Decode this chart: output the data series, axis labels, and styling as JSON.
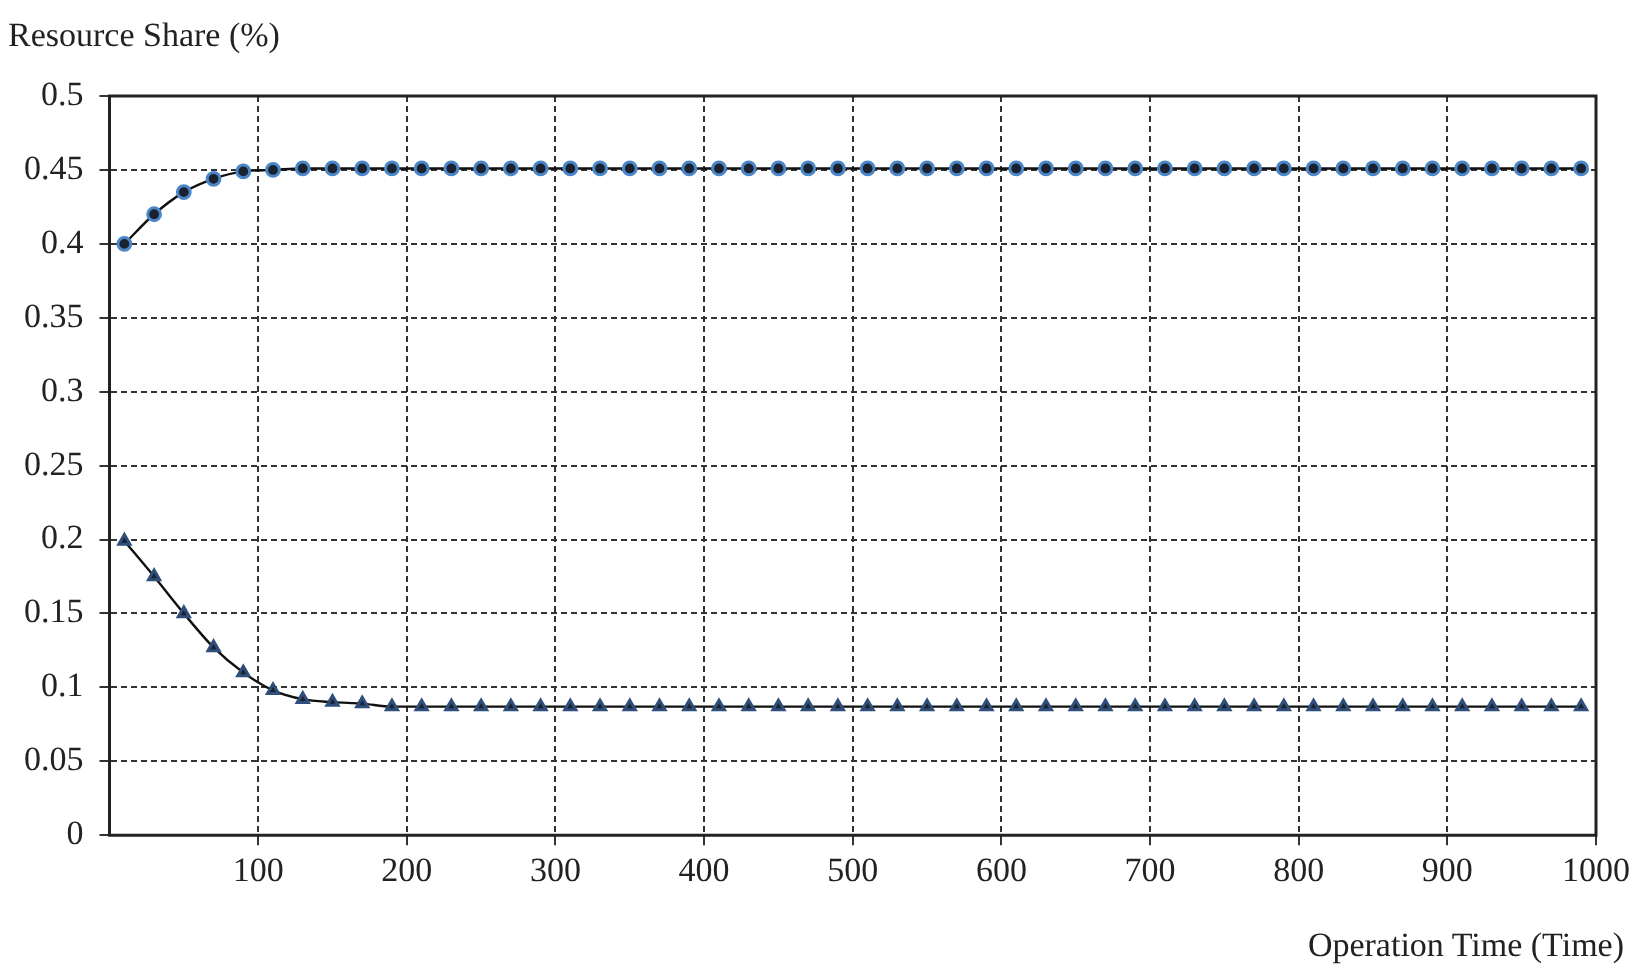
{
  "chart_data": {
    "type": "line",
    "xlabel": "Operation Time (Time)",
    "ylabel": "Resource Share (%)",
    "x": [
      10,
      30,
      50,
      70,
      90,
      110,
      130,
      150,
      170,
      190,
      210,
      230,
      250,
      270,
      290,
      310,
      330,
      350,
      370,
      390,
      410,
      430,
      450,
      470,
      490,
      510,
      530,
      550,
      570,
      590,
      610,
      630,
      650,
      670,
      690,
      710,
      730,
      750,
      770,
      790,
      810,
      830,
      850,
      870,
      890,
      910,
      930,
      950,
      970,
      990
    ],
    "series": [
      {
        "color": "#4a86c8",
        "marker": "circle",
        "values": [
          0.4,
          0.42,
          0.435,
          0.444,
          0.449,
          0.45,
          0.451,
          0.451,
          0.451,
          0.451,
          0.451,
          0.451,
          0.451,
          0.451,
          0.451,
          0.451,
          0.451,
          0.451,
          0.451,
          0.451,
          0.451,
          0.451,
          0.451,
          0.451,
          0.451,
          0.451,
          0.451,
          0.451,
          0.451,
          0.451,
          0.451,
          0.451,
          0.451,
          0.451,
          0.451,
          0.451,
          0.451,
          0.451,
          0.451,
          0.451,
          0.451,
          0.451,
          0.451,
          0.451,
          0.451,
          0.451,
          0.451,
          0.451,
          0.451,
          0.451
        ]
      },
      {
        "color": "#2f4f7a",
        "marker": "triangle",
        "values": [
          0.199,
          0.175,
          0.15,
          0.127,
          0.11,
          0.098,
          0.092,
          0.09,
          0.089,
          0.087,
          0.087,
          0.087,
          0.087,
          0.087,
          0.087,
          0.087,
          0.087,
          0.087,
          0.087,
          0.087,
          0.087,
          0.087,
          0.087,
          0.087,
          0.087,
          0.087,
          0.087,
          0.087,
          0.087,
          0.087,
          0.087,
          0.087,
          0.087,
          0.087,
          0.087,
          0.087,
          0.087,
          0.087,
          0.087,
          0.087,
          0.087,
          0.087,
          0.087,
          0.087,
          0.087,
          0.087,
          0.087,
          0.087,
          0.087,
          0.087
        ]
      }
    ],
    "xlim": [
      0,
      1000
    ],
    "xticks": [
      100,
      200,
      300,
      400,
      500,
      600,
      700,
      800,
      900,
      1000
    ],
    "ylim": [
      0,
      0.5
    ],
    "yticks": [
      0,
      0.05,
      0.1,
      0.15,
      0.2,
      0.25,
      0.3,
      0.35,
      0.4,
      0.45,
      0.5
    ],
    "grid": true,
    "legend": false,
    "line_style": "solid"
  }
}
